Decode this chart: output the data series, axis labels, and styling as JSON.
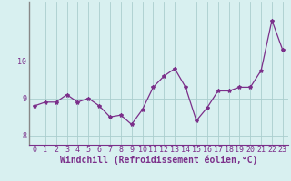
{
  "x": [
    0,
    1,
    2,
    3,
    4,
    5,
    6,
    7,
    8,
    9,
    10,
    11,
    12,
    13,
    14,
    15,
    16,
    17,
    18,
    19,
    20,
    21,
    22,
    23
  ],
  "y": [
    8.8,
    8.9,
    8.9,
    9.1,
    8.9,
    9.0,
    8.8,
    8.5,
    8.55,
    8.3,
    8.7,
    9.3,
    9.6,
    9.8,
    9.3,
    8.4,
    8.75,
    9.2,
    9.2,
    9.3,
    9.3,
    9.75,
    11.1,
    10.3
  ],
  "line_color": "#7b2f8a",
  "marker": "*",
  "marker_size": 3,
  "bg_color": "#d8f0f0",
  "grid_color": "#aacece",
  "xlabel": "Windchill (Refroidissement éolien,°C)",
  "xlim": [
    -0.5,
    23.5
  ],
  "ylim": [
    7.75,
    11.6
  ],
  "yticks": [
    8,
    9,
    10
  ],
  "xticks": [
    0,
    1,
    2,
    3,
    4,
    5,
    6,
    7,
    8,
    9,
    10,
    11,
    12,
    13,
    14,
    15,
    16,
    17,
    18,
    19,
    20,
    21,
    22,
    23
  ],
  "tick_fontsize": 6,
  "xlabel_fontsize": 7
}
